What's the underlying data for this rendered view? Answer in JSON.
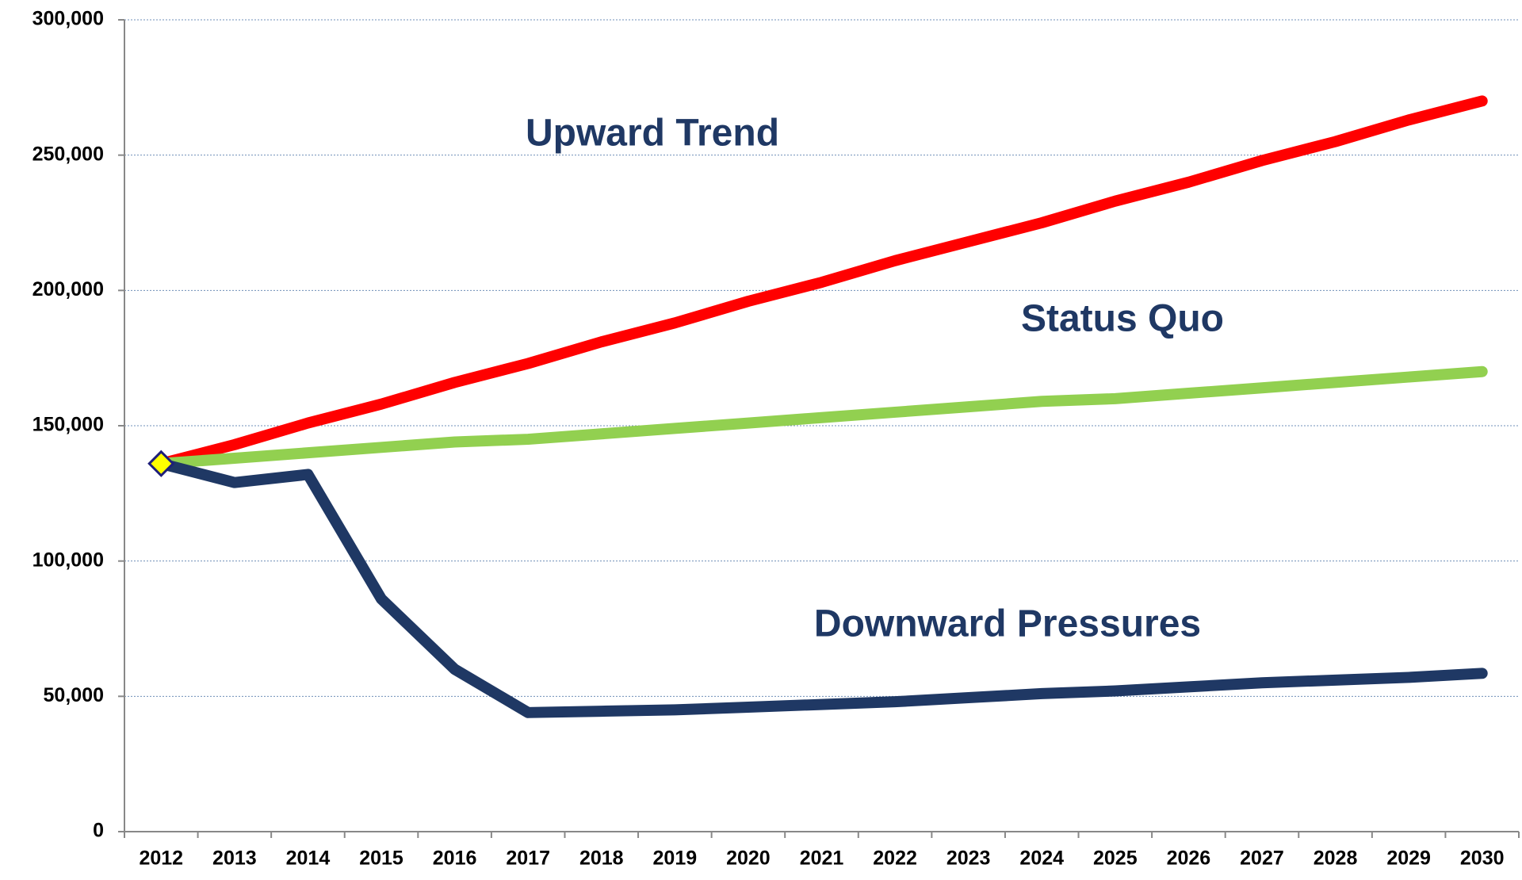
{
  "chart_data": {
    "type": "line",
    "x": [
      "2012",
      "2013",
      "2014",
      "2015",
      "2016",
      "2017",
      "2018",
      "2019",
      "2020",
      "2021",
      "2022",
      "2023",
      "2024",
      "2025",
      "2026",
      "2027",
      "2028",
      "2029",
      "2030"
    ],
    "series": [
      {
        "name": "Upward Trend",
        "color": "#ff0000",
        "values": [
          136000,
          143000,
          151000,
          158000,
          166000,
          173000,
          181000,
          188000,
          196000,
          203000,
          211000,
          218000,
          225000,
          233000,
          240000,
          248000,
          255000,
          263000,
          270000
        ]
      },
      {
        "name": "Status Quo",
        "color": "#92d050",
        "values": [
          136000,
          138000,
          140000,
          142000,
          144000,
          145000,
          147000,
          149000,
          151000,
          153000,
          155000,
          157000,
          159000,
          160000,
          162000,
          164000,
          166000,
          168000,
          170000
        ]
      },
      {
        "name": "Downward Pressures",
        "color": "#1f3864",
        "values": [
          136000,
          129000,
          132000,
          86000,
          60000,
          44000,
          44500,
          45000,
          46000,
          47000,
          48000,
          49500,
          51000,
          52000,
          53500,
          55000,
          56000,
          57000,
          58500
        ]
      }
    ],
    "ylim": [
      0,
      300000
    ],
    "yticks": [
      {
        "value": 0,
        "label": "0"
      },
      {
        "value": 50000,
        "label": "50,000"
      },
      {
        "value": 100000,
        "label": "100,000"
      },
      {
        "value": 150000,
        "label": "150,000"
      },
      {
        "value": 200000,
        "label": "200,000"
      },
      {
        "value": 250000,
        "label": "250,000"
      },
      {
        "value": 300000,
        "label": "300,000"
      }
    ],
    "grid": true,
    "start_marker_color": "#ffff00"
  }
}
